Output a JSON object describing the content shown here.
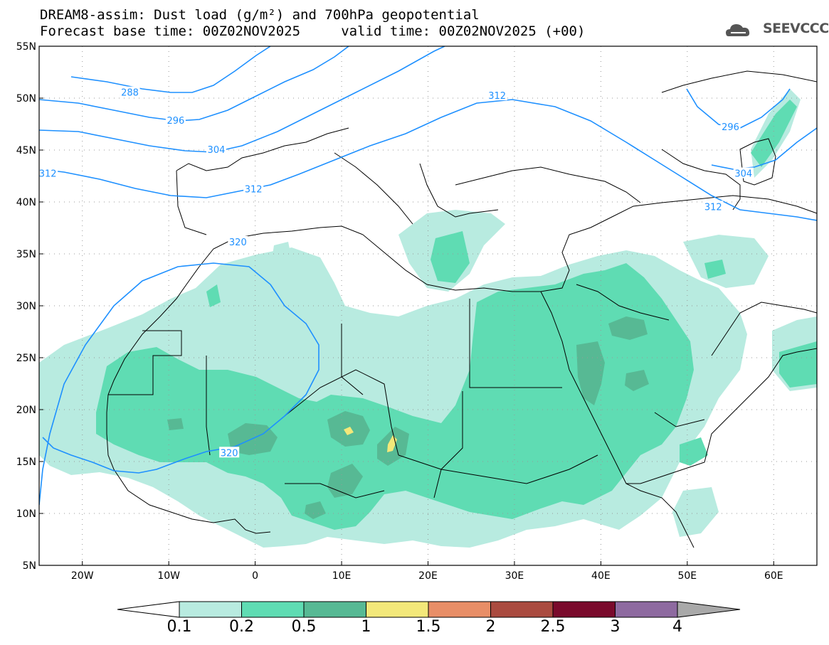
{
  "header": {
    "title_line1": "DREAM8-assim: Dust load (g/m²) and 700hPa geopotential",
    "title_line2": "Forecast base time: 00Z02NOV2025     valid time: 00Z02NOV2025 (+00)",
    "logo_text": "SEEVCCC",
    "logo_icon": "cloud-logo-icon"
  },
  "map": {
    "lon_range": [
      -25,
      65
    ],
    "lat_range": [
      5,
      55
    ],
    "x_ticks": [
      {
        "lon": -20,
        "label": "20W"
      },
      {
        "lon": -10,
        "label": "10W"
      },
      {
        "lon": 0,
        "label": "0"
      },
      {
        "lon": 10,
        "label": "10E"
      },
      {
        "lon": 20,
        "label": "20E"
      },
      {
        "lon": 30,
        "label": "30E"
      },
      {
        "lon": 40,
        "label": "40E"
      },
      {
        "lon": 50,
        "label": "50E"
      },
      {
        "lon": 60,
        "label": "60E"
      }
    ],
    "y_ticks": [
      {
        "lat": 55,
        "label": "55N"
      },
      {
        "lat": 50,
        "label": "50N"
      },
      {
        "lat": 45,
        "label": "45N"
      },
      {
        "lat": 40,
        "label": "40N"
      },
      {
        "lat": 35,
        "label": "35N"
      },
      {
        "lat": 30,
        "label": "30N"
      },
      {
        "lat": 25,
        "label": "25N"
      },
      {
        "lat": 20,
        "label": "20N"
      },
      {
        "lat": 15,
        "label": "15N"
      },
      {
        "lat": 10,
        "label": "10N"
      },
      {
        "lat": 5,
        "label": "5N"
      }
    ],
    "grid": true,
    "contour_labels": [
      {
        "text": "288",
        "lon": -14.5,
        "lat": 50.5
      },
      {
        "text": "296",
        "lon": -9.2,
        "lat": 47.8
      },
      {
        "text": "304",
        "lon": -4.5,
        "lat": 45.0
      },
      {
        "text": "312",
        "lon": -24,
        "lat": 42.7
      },
      {
        "text": "312",
        "lon": -0.2,
        "lat": 41.2
      },
      {
        "text": "312",
        "lon": 28,
        "lat": 50.2
      },
      {
        "text": "296",
        "lon": 55,
        "lat": 47.2
      },
      {
        "text": "304",
        "lon": 56.5,
        "lat": 42.7
      },
      {
        "text": "312",
        "lon": 53,
        "lat": 39.5
      },
      {
        "text": "320",
        "lon": -2.0,
        "lat": 36.1
      },
      {
        "text": "320",
        "lon": -3.0,
        "lat": 15.8
      }
    ]
  },
  "colorbar": {
    "labels": [
      "0.1",
      "0.2",
      "0.5",
      "1",
      "1.5",
      "2",
      "2.5",
      "3",
      "4"
    ],
    "colors": [
      "#b8ebe0",
      "#5fdcb3",
      "#57b994",
      "#f3e87a",
      "#e88e67",
      "#aa4b40",
      "#7a0a2c",
      "#8e6aa0"
    ],
    "under_color": "#ffffff",
    "over_color": "#a9a9a9"
  },
  "colors": {
    "contour": "#1e90ff",
    "land_border": "#000000"
  }
}
